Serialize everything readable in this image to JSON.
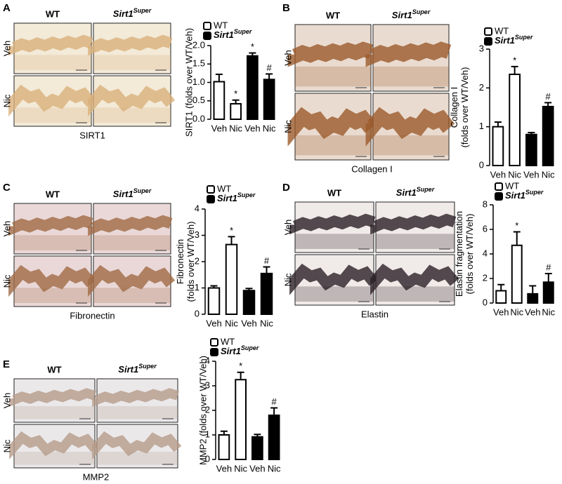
{
  "panels": [
    {
      "letter": "A",
      "columns": [
        "WT",
        "Sirt1"
      ],
      "column_superscript": "Super",
      "rows": [
        "Veh",
        "Nic"
      ],
      "stain": "SIRT1"
    },
    {
      "letter": "B",
      "columns": [
        "WT",
        "Sirt1"
      ],
      "column_superscript": "Super",
      "rows": [
        "Veh",
        "Nic"
      ],
      "stain": "Collagen I"
    },
    {
      "letter": "C",
      "columns": [
        "WT",
        "Sirt1"
      ],
      "column_superscript": "Super",
      "rows": [
        "Veh",
        "Nic"
      ],
      "stain": "Fibronectin"
    },
    {
      "letter": "D",
      "columns": [
        "WT",
        "Sirt1"
      ],
      "column_superscript": "Super",
      "rows": [
        "Veh",
        "Nic"
      ],
      "stain": "Elastin"
    },
    {
      "letter": "E",
      "columns": [
        "WT",
        "Sirt1"
      ],
      "column_superscript": "Super",
      "rows": [
        "Veh",
        "Nic"
      ],
      "stain": "MMP2"
    }
  ],
  "chart_data": [
    {
      "type": "bar",
      "ylabel": [
        "SIRT1 (folds over WT/Veh)"
      ],
      "categories": [
        "Veh",
        "Nic",
        "Veh",
        "Nic"
      ],
      "ylim": [
        0,
        2
      ],
      "yticks": [
        {
          "value": 0,
          "label": "0.0"
        },
        {
          "value": 0.5,
          "label": "0.5"
        },
        {
          "value": 1,
          "label": "1.0"
        },
        {
          "value": 1.5,
          "label": "1.5"
        },
        {
          "value": 2,
          "label": "2.0"
        }
      ],
      "series": [
        {
          "name": "WT",
          "color": "#ffffff",
          "values": [
            1.02,
            0.42,
            null,
            null
          ],
          "errors": [
            0.2,
            0.1,
            null,
            null
          ],
          "marks": [
            null,
            "*",
            null,
            null
          ]
        },
        {
          "name": "Sirt1",
          "name_superscript": "Super",
          "color": "#000000",
          "values": [
            null,
            null,
            1.72,
            1.08
          ],
          "errors": [
            null,
            null,
            0.08,
            0.15
          ],
          "marks": [
            null,
            null,
            "*",
            "#"
          ]
        }
      ]
    },
    {
      "type": "bar",
      "ylabel": [
        "Collagen I",
        "(folds over WT/Veh)"
      ],
      "categories": [
        "Veh",
        "Nic",
        "Veh",
        "Nic"
      ],
      "ylim": [
        0,
        3
      ],
      "yticks": [
        0,
        1,
        2,
        3
      ],
      "series": [
        {
          "name": "WT",
          "color": "#ffffff",
          "values": [
            1.0,
            2.35,
            null,
            null
          ],
          "errors": [
            0.12,
            0.2,
            null,
            null
          ],
          "marks": [
            null,
            "*",
            null,
            null
          ]
        },
        {
          "name": "Sirt1",
          "name_superscript": "Super",
          "color": "#000000",
          "values": [
            null,
            null,
            0.8,
            1.52
          ],
          "errors": [
            null,
            null,
            0.05,
            0.1
          ],
          "marks": [
            null,
            null,
            null,
            "#"
          ]
        }
      ]
    },
    {
      "type": "bar",
      "ylabel": [
        "Fibronectin",
        "(folds over WT/Veh)"
      ],
      "categories": [
        "Veh",
        "Nic",
        "Veh",
        "Nic"
      ],
      "ylim": [
        0,
        4
      ],
      "yticks": [
        0,
        1,
        2,
        3,
        4
      ],
      "series": [
        {
          "name": "WT",
          "color": "#ffffff",
          "values": [
            1.0,
            2.65,
            null,
            null
          ],
          "errors": [
            0.08,
            0.3,
            null,
            null
          ],
          "marks": [
            null,
            "*",
            null,
            null
          ]
        },
        {
          "name": "Sirt1",
          "name_superscript": "Super",
          "color": "#000000",
          "values": [
            null,
            null,
            0.9,
            1.55
          ],
          "errors": [
            null,
            null,
            0.08,
            0.25
          ],
          "marks": [
            null,
            null,
            null,
            "#"
          ]
        }
      ]
    },
    {
      "type": "bar",
      "ylabel": [
        "Elastin fragmentation",
        "(folds over WT/Veh)"
      ],
      "categories": [
        "Veh",
        "Nic",
        "Veh",
        "Nic"
      ],
      "ylim": [
        0,
        8
      ],
      "yticks": [
        0,
        2,
        4,
        6,
        8
      ],
      "series": [
        {
          "name": "WT",
          "color": "#ffffff",
          "values": [
            1.0,
            4.7,
            null,
            null
          ],
          "errors": [
            0.5,
            1.1,
            null,
            null
          ],
          "marks": [
            null,
            "*",
            null,
            null
          ]
        },
        {
          "name": "Sirt1",
          "name_superscript": "Super",
          "color": "#000000",
          "values": [
            null,
            null,
            0.75,
            1.7
          ],
          "errors": [
            null,
            null,
            0.65,
            0.7
          ],
          "marks": [
            null,
            null,
            null,
            "#"
          ]
        }
      ]
    },
    {
      "type": "bar",
      "ylabel": [
        "MMP2 (folds over WT/Veh)"
      ],
      "categories": [
        "Veh",
        "Nic",
        "Veh",
        "Nic"
      ],
      "ylim": [
        0,
        4
      ],
      "yticks": [
        0,
        1,
        2,
        3,
        4
      ],
      "series": [
        {
          "name": "WT",
          "color": "#ffffff",
          "values": [
            1.0,
            3.25,
            null,
            null
          ],
          "errors": [
            0.15,
            0.3,
            null,
            null
          ],
          "marks": [
            null,
            "*",
            null,
            null
          ]
        },
        {
          "name": "Sirt1",
          "name_superscript": "Super",
          "color": "#000000",
          "values": [
            null,
            null,
            0.92,
            1.8
          ],
          "errors": [
            null,
            null,
            0.1,
            0.3
          ],
          "marks": [
            null,
            null,
            null,
            "#"
          ]
        }
      ]
    }
  ]
}
